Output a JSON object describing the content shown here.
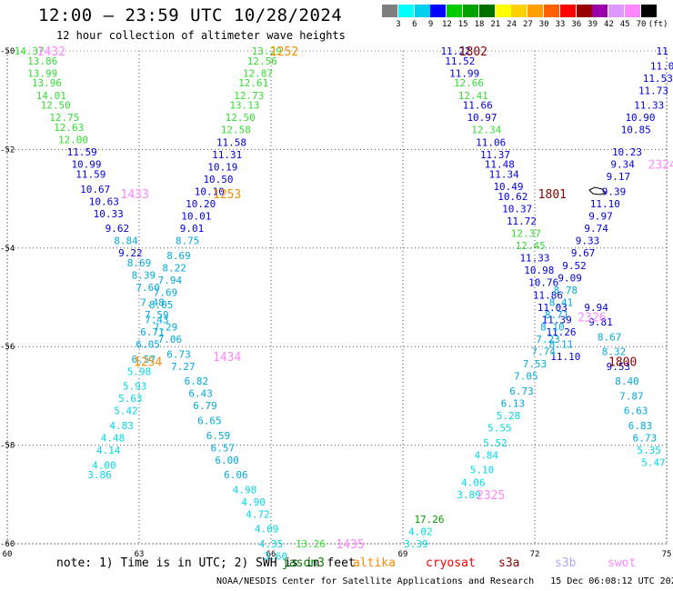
{
  "title": "12:00 – 23:59 UTC 10/28/2024",
  "subtitle": "12 hour collection of altimeter wave heights",
  "colorbar": {
    "labels": [
      "3",
      "6",
      "9",
      "12",
      "15",
      "18",
      "21",
      "24",
      "27",
      "30",
      "33",
      "36",
      "39",
      "42",
      "45",
      "70",
      "(ft)"
    ],
    "colors": [
      "#7f7f7f",
      "#00ffff",
      "#00d0f0",
      "#0000ff",
      "#00cc00",
      "#00a000",
      "#007000",
      "#ffff00",
      "#ffd000",
      "#ffa000",
      "#ff6000",
      "#ff0000",
      "#990000",
      "#9900aa",
      "#dd99ff",
      "#ff88ff",
      "#000000"
    ]
  },
  "note": "note: 1) Time is in UTC; 2) SWH is in feet",
  "satellites": [
    {
      "name": "jason3",
      "color": "#008000"
    },
    {
      "name": "altika",
      "color": "#ff8c00"
    },
    {
      "name": "cryosat",
      "color": "#ff0000"
    },
    {
      "name": "s3a",
      "color": "#8b0000"
    },
    {
      "name": "s3b",
      "color": "#aaaaff"
    },
    {
      "name": "swot",
      "color": "#ff88ff"
    }
  ],
  "credit": "NOAA/NESDIS Center for Satellite Applications and Research   15 Dec 06:08:12 UTC 2024",
  "chart_data": {
    "type": "scatter",
    "x_ticks": [
      "60",
      "63",
      "66",
      "69",
      "72",
      "75"
    ],
    "y_ticks": [
      "-50",
      "-52",
      "-54",
      "-56",
      "-58",
      "-60"
    ],
    "xlim": [
      60,
      75
    ],
    "ylim": [
      -60,
      -50
    ],
    "grid": true,
    "pass_labels": [
      {
        "text": "1432",
        "x": 61.0,
        "y": -50.0,
        "color": "#ff88ff"
      },
      {
        "text": "1252",
        "x": 66.3,
        "y": -50.0,
        "color": "#ff8c00"
      },
      {
        "text": "1802",
        "x": 70.6,
        "y": -50.0,
        "color": "#8b0000"
      },
      {
        "text": "1433",
        "x": 62.9,
        "y": -52.9,
        "color": "#ff88ff"
      },
      {
        "text": "1253",
        "x": 65.0,
        "y": -52.9,
        "color": "#ff8c00"
      },
      {
        "text": "1801",
        "x": 72.4,
        "y": -52.9,
        "color": "#8b0000"
      },
      {
        "text": "2324",
        "x": 74.9,
        "y": -52.3,
        "color": "#ff88ff"
      },
      {
        "text": "1254",
        "x": 63.2,
        "y": -56.3,
        "color": "#ff8c00"
      },
      {
        "text": "1434",
        "x": 65.0,
        "y": -56.2,
        "color": "#ff88ff"
      },
      {
        "text": "2326",
        "x": 73.3,
        "y": -55.4,
        "color": "#ff88ff"
      },
      {
        "text": "1800",
        "x": 74.0,
        "y": -56.3,
        "color": "#8b0000"
      },
      {
        "text": "2325",
        "x": 71.0,
        "y": -59.0,
        "color": "#ff88ff"
      },
      {
        "text": "1435",
        "x": 67.8,
        "y": -60.0,
        "color": "#ff88ff"
      }
    ],
    "series": [
      {
        "values": [
          {
            "x": 60.5,
            "y": -50.0,
            "v": "14.37"
          },
          {
            "x": 60.8,
            "y": -50.2,
            "v": "13.86"
          },
          {
            "x": 60.8,
            "y": -50.45,
            "v": "13.99"
          },
          {
            "x": 60.9,
            "y": -50.65,
            "v": "13.96"
          },
          {
            "x": 61.0,
            "y": -50.9,
            "v": "14.01"
          },
          {
            "x": 61.1,
            "y": -51.1,
            "v": "12.50"
          },
          {
            "x": 61.3,
            "y": -51.35,
            "v": "12.75"
          },
          {
            "x": 61.4,
            "y": -51.55,
            "v": "12.63"
          },
          {
            "x": 61.5,
            "y": -51.8,
            "v": "12.00"
          },
          {
            "x": 61.7,
            "y": -52.05,
            "v": "11.59"
          },
          {
            "x": 61.8,
            "y": -52.3,
            "v": "10.99"
          },
          {
            "x": 61.9,
            "y": -52.5,
            "v": "11.59"
          },
          {
            "x": 62.0,
            "y": -52.8,
            "v": "10.67"
          },
          {
            "x": 62.2,
            "y": -53.05,
            "v": "10.63"
          },
          {
            "x": 62.3,
            "y": -53.3,
            "v": "10.33"
          },
          {
            "x": 62.5,
            "y": -53.6,
            "v": "9.62"
          },
          {
            "x": 62.7,
            "y": -53.85,
            "v": "8.84"
          },
          {
            "x": 62.8,
            "y": -54.1,
            "v": "9.22"
          },
          {
            "x": 63.0,
            "y": -54.3,
            "v": "8.69"
          },
          {
            "x": 63.1,
            "y": -54.55,
            "v": "8.39"
          },
          {
            "x": 63.2,
            "y": -54.8,
            "v": "7.60"
          },
          {
            "x": 63.3,
            "y": -55.1,
            "v": "7.48"
          },
          {
            "x": 63.4,
            "y": -55.35,
            "v": "7.59"
          },
          {
            "x": 63.6,
            "y": -55.6,
            "v": "7.29"
          },
          {
            "x": 63.7,
            "y": -55.85,
            "v": "7.06"
          },
          {
            "x": 63.9,
            "y": -56.15,
            "v": "6.73"
          },
          {
            "x": 64.0,
            "y": -56.4,
            "v": "7.27"
          },
          {
            "x": 64.3,
            "y": -56.7,
            "v": "6.82"
          },
          {
            "x": 64.4,
            "y": -56.95,
            "v": "6.43"
          },
          {
            "x": 64.5,
            "y": -57.2,
            "v": "6.79"
          },
          {
            "x": 64.6,
            "y": -57.5,
            "v": "6.65"
          },
          {
            "x": 64.8,
            "y": -57.8,
            "v": "6.59"
          },
          {
            "x": 64.9,
            "y": -58.05,
            "v": "6.57"
          },
          {
            "x": 65.0,
            "y": -58.3,
            "v": "6.00"
          },
          {
            "x": 65.2,
            "y": -58.6,
            "v": "6.06"
          },
          {
            "x": 65.4,
            "y": -58.9,
            "v": "4.98"
          },
          {
            "x": 65.6,
            "y": -59.15,
            "v": "4.90"
          },
          {
            "x": 65.7,
            "y": -59.4,
            "v": "4.72"
          },
          {
            "x": 65.9,
            "y": -59.7,
            "v": "4.09"
          },
          {
            "x": 66.0,
            "y": -60.0,
            "v": "4.35"
          },
          {
            "x": 66.1,
            "y": -60.25,
            "v": "3.60"
          }
        ]
      },
      {
        "values": [
          {
            "x": 65.9,
            "y": -50.0,
            "v": "13.29"
          },
          {
            "x": 65.8,
            "y": -50.2,
            "v": "12.56"
          },
          {
            "x": 65.7,
            "y": -50.45,
            "v": "12.87"
          },
          {
            "x": 65.6,
            "y": -50.65,
            "v": "12.61"
          },
          {
            "x": 65.5,
            "y": -50.9,
            "v": "12.73"
          },
          {
            "x": 65.4,
            "y": -51.1,
            "v": "13.13"
          },
          {
            "x": 65.3,
            "y": -51.35,
            "v": "12.50"
          },
          {
            "x": 65.2,
            "y": -51.6,
            "v": "12.58"
          },
          {
            "x": 65.1,
            "y": -51.85,
            "v": "11.58"
          },
          {
            "x": 65.0,
            "y": -52.1,
            "v": "11.31"
          },
          {
            "x": 64.9,
            "y": -52.35,
            "v": "10.19"
          },
          {
            "x": 64.8,
            "y": -52.6,
            "v": "10.50"
          },
          {
            "x": 64.6,
            "y": -52.85,
            "v": "10.10"
          },
          {
            "x": 64.4,
            "y": -53.1,
            "v": "10.20"
          },
          {
            "x": 64.3,
            "y": -53.35,
            "v": "10.01"
          },
          {
            "x": 64.2,
            "y": -53.6,
            "v": "9.01"
          },
          {
            "x": 64.1,
            "y": -53.85,
            "v": "8.75"
          },
          {
            "x": 63.9,
            "y": -54.15,
            "v": "8.69"
          },
          {
            "x": 63.8,
            "y": -54.4,
            "v": "8.22"
          },
          {
            "x": 63.7,
            "y": -54.65,
            "v": "7.94"
          },
          {
            "x": 63.6,
            "y": -54.9,
            "v": "7.69"
          },
          {
            "x": 63.5,
            "y": -55.15,
            "v": "8.05"
          },
          {
            "x": 63.4,
            "y": -55.45,
            "v": "7.43"
          },
          {
            "x": 63.3,
            "y": -55.7,
            "v": "6.71"
          },
          {
            "x": 63.2,
            "y": -55.95,
            "v": "6.05"
          },
          {
            "x": 63.1,
            "y": -56.25,
            "v": "6.57"
          },
          {
            "x": 63.0,
            "y": -56.5,
            "v": "5.98"
          },
          {
            "x": 62.9,
            "y": -56.8,
            "v": "5.93"
          },
          {
            "x": 62.8,
            "y": -57.05,
            "v": "5.63"
          },
          {
            "x": 62.7,
            "y": -57.3,
            "v": "5.42"
          },
          {
            "x": 62.6,
            "y": -57.6,
            "v": "4.83"
          },
          {
            "x": 62.4,
            "y": -57.85,
            "v": "4.48"
          },
          {
            "x": 62.3,
            "y": -58.1,
            "v": "4.14"
          },
          {
            "x": 62.2,
            "y": -58.4,
            "v": "4.00"
          },
          {
            "x": 62.1,
            "y": -58.6,
            "v": "3.86"
          }
        ]
      },
      {
        "values": [
          {
            "x": 70.2,
            "y": -50.0,
            "v": "11.22"
          },
          {
            "x": 70.3,
            "y": -50.2,
            "v": "11.52"
          },
          {
            "x": 70.4,
            "y": -50.45,
            "v": "11.99"
          },
          {
            "x": 70.5,
            "y": -50.65,
            "v": "12.66"
          },
          {
            "x": 70.6,
            "y": -50.9,
            "v": "12.41"
          },
          {
            "x": 70.7,
            "y": -51.1,
            "v": "11.66"
          },
          {
            "x": 70.8,
            "y": -51.35,
            "v": "10.97"
          },
          {
            "x": 70.9,
            "y": -51.6,
            "v": "12.34"
          },
          {
            "x": 71.0,
            "y": -51.85,
            "v": "11.06"
          },
          {
            "x": 71.1,
            "y": -52.1,
            "v": "11.37"
          },
          {
            "x": 71.2,
            "y": -52.3,
            "v": "11.48"
          },
          {
            "x": 71.3,
            "y": -52.5,
            "v": "11.34"
          },
          {
            "x": 71.4,
            "y": -52.75,
            "v": "10.49"
          },
          {
            "x": 71.5,
            "y": -52.95,
            "v": "10.62"
          },
          {
            "x": 71.6,
            "y": -53.2,
            "v": "10.37"
          },
          {
            "x": 71.7,
            "y": -53.45,
            "v": "11.72"
          },
          {
            "x": 71.8,
            "y": -53.7,
            "v": "12.37"
          },
          {
            "x": 71.9,
            "y": -53.95,
            "v": "12.45"
          },
          {
            "x": 72.0,
            "y": -54.2,
            "v": "11.33"
          },
          {
            "x": 72.1,
            "y": -54.45,
            "v": "10.98"
          },
          {
            "x": 72.2,
            "y": -54.7,
            "v": "10.76"
          },
          {
            "x": 72.3,
            "y": -54.95,
            "v": "11.86"
          },
          {
            "x": 72.4,
            "y": -55.2,
            "v": "11.03"
          },
          {
            "x": 72.5,
            "y": -55.45,
            "v": "11.39"
          },
          {
            "x": 72.6,
            "y": -55.7,
            "v": "11.26"
          },
          {
            "x": 72.6,
            "y": -55.95,
            "v": "8.11"
          },
          {
            "x": 72.7,
            "y": -56.2,
            "v": "11.10"
          }
        ]
      },
      {
        "values": [
          {
            "x": 74.9,
            "y": -50.0,
            "v": "11"
          },
          {
            "x": 74.9,
            "y": -50.3,
            "v": "11.0"
          },
          {
            "x": 74.8,
            "y": -50.55,
            "v": "11.53"
          },
          {
            "x": 74.7,
            "y": -50.8,
            "v": "11.73"
          },
          {
            "x": 74.6,
            "y": -51.1,
            "v": "11.33"
          },
          {
            "x": 74.4,
            "y": -51.35,
            "v": "10.90"
          },
          {
            "x": 74.3,
            "y": -51.6,
            "v": "10.85"
          },
          {
            "x": 74.1,
            "y": -52.05,
            "v": "10.23"
          },
          {
            "x": 74.0,
            "y": -52.3,
            "v": "9.34"
          },
          {
            "x": 73.9,
            "y": -52.55,
            "v": "9.17"
          },
          {
            "x": 73.8,
            "y": -52.85,
            "v": "9.39"
          },
          {
            "x": 73.6,
            "y": -53.1,
            "v": "11.10"
          },
          {
            "x": 73.5,
            "y": -53.35,
            "v": "9.97"
          },
          {
            "x": 73.4,
            "y": -53.6,
            "v": "9.74"
          },
          {
            "x": 73.2,
            "y": -53.85,
            "v": "9.33"
          },
          {
            "x": 73.1,
            "y": -54.1,
            "v": "9.67"
          },
          {
            "x": 72.9,
            "y": -54.35,
            "v": "9.52"
          },
          {
            "x": 72.8,
            "y": -54.6,
            "v": "9.09"
          },
          {
            "x": 72.7,
            "y": -54.85,
            "v": "8.78"
          },
          {
            "x": 72.6,
            "y": -55.1,
            "v": "8.41"
          },
          {
            "x": 72.5,
            "y": -55.35,
            "v": "8.71"
          },
          {
            "x": 72.4,
            "y": -55.6,
            "v": "8.10"
          },
          {
            "x": 72.3,
            "y": -55.85,
            "v": "7.23"
          },
          {
            "x": 72.2,
            "y": -56.1,
            "v": "7.74"
          },
          {
            "x": 72.0,
            "y": -56.35,
            "v": "7.53"
          },
          {
            "x": 71.8,
            "y": -56.6,
            "v": "7.05"
          },
          {
            "x": 71.7,
            "y": -56.9,
            "v": "6.73"
          },
          {
            "x": 71.5,
            "y": -57.15,
            "v": "6.13"
          },
          {
            "x": 71.4,
            "y": -57.4,
            "v": "5.28"
          },
          {
            "x": 71.2,
            "y": -57.65,
            "v": "5.55"
          },
          {
            "x": 71.1,
            "y": -57.95,
            "v": "5.52"
          },
          {
            "x": 70.9,
            "y": -58.2,
            "v": "4.84"
          },
          {
            "x": 70.8,
            "y": -58.5,
            "v": "5.10"
          },
          {
            "x": 70.6,
            "y": -58.75,
            "v": "4.06"
          },
          {
            "x": 70.5,
            "y": -59.0,
            "v": "3.89"
          }
        ]
      },
      {
        "values": [
          {
            "x": 73.4,
            "y": -55.2,
            "v": "9.94"
          },
          {
            "x": 73.5,
            "y": -55.5,
            "v": "9.81"
          },
          {
            "x": 73.7,
            "y": -55.8,
            "v": "8.67"
          },
          {
            "x": 73.8,
            "y": -56.1,
            "v": "8.32"
          },
          {
            "x": 73.9,
            "y": -56.4,
            "v": "9.53"
          },
          {
            "x": 74.1,
            "y": -56.7,
            "v": "8.40"
          },
          {
            "x": 74.2,
            "y": -57.0,
            "v": "7.87"
          },
          {
            "x": 74.3,
            "y": -57.3,
            "v": "6.63"
          },
          {
            "x": 74.4,
            "y": -57.6,
            "v": "6.83"
          },
          {
            "x": 74.5,
            "y": -57.85,
            "v": "6.73"
          },
          {
            "x": 74.6,
            "y": -58.1,
            "v": "5.35"
          },
          {
            "x": 74.7,
            "y": -58.35,
            "v": "5.47"
          }
        ]
      },
      {
        "values": [
          {
            "x": 69.6,
            "y": -59.5,
            "v": "17.26"
          },
          {
            "x": 69.4,
            "y": -59.75,
            "v": "4.02"
          },
          {
            "x": 69.3,
            "y": -60.0,
            "v": "3.39"
          },
          {
            "x": 66.9,
            "y": -60.0,
            "v": "13.26"
          }
        ]
      }
    ]
  }
}
